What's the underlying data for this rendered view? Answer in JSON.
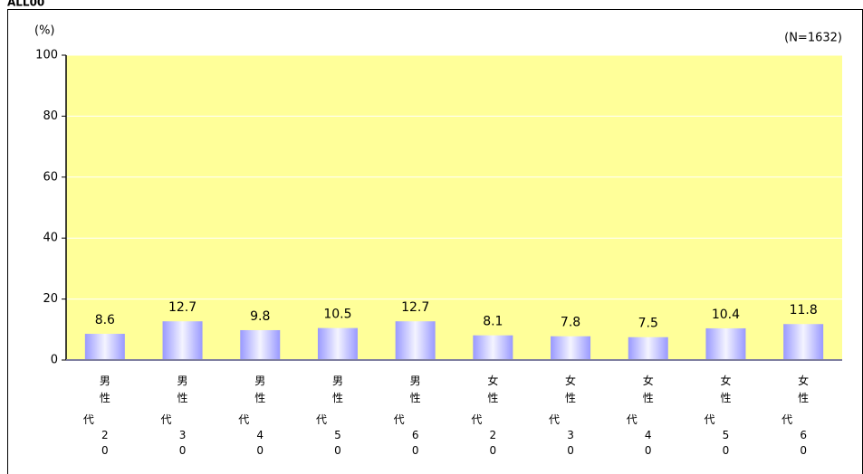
{
  "header": "ALL00",
  "chart_data": {
    "type": "bar",
    "unit_label": "(%)",
    "sample_note": "(N=1632)",
    "categories": [
      "男性20代",
      "男性30代",
      "男性40代",
      "男性50代",
      "男性60代",
      "女性20代",
      "女性30代",
      "女性40代",
      "女性50代",
      "女性60代"
    ],
    "values": [
      8.6,
      12.7,
      9.8,
      10.5,
      12.7,
      8.1,
      7.8,
      7.5,
      10.4,
      11.8
    ],
    "ylim": [
      0,
      100
    ],
    "yticks": [
      0,
      20,
      40,
      60,
      80,
      100
    ],
    "grid": true,
    "plot_background": "#ffff99",
    "color": "#9999ff"
  }
}
